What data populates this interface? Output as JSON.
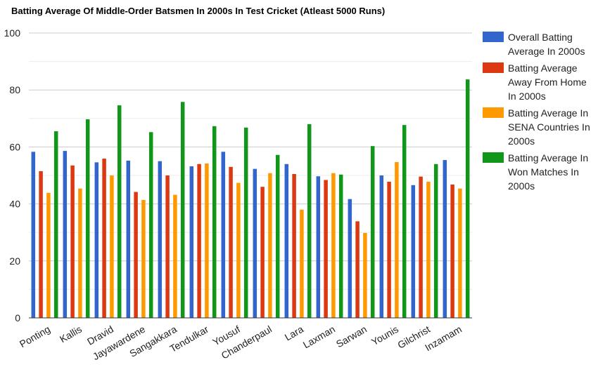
{
  "chart_data": {
    "type": "bar",
    "title": "Batting Average Of Middle-Order Batsmen In 2000s In Test Cricket (Atleast 5000 Runs)",
    "xlabel": "",
    "ylabel": "",
    "ylim": [
      0,
      100
    ],
    "yticks": [
      "0",
      "20",
      "40",
      "60",
      "80",
      "100"
    ],
    "grid": true,
    "legend_position": "right",
    "categories": [
      "Ponting",
      "Kallis",
      "Dravid",
      "Jayawardene",
      "Sangakkara",
      "Tendulkar",
      "Yousuf",
      "Chanderpaul",
      "Lara",
      "Laxman",
      "Sarwan",
      "Younis",
      "Gilchrist",
      "Inzamam"
    ],
    "series": [
      {
        "name": "Overall Batting Average In 2000s",
        "legend_lines": [
          "Overall Batting",
          "Average In 2000s"
        ],
        "color": "#3366cc",
        "values": [
          58.3,
          58.6,
          54.6,
          55.2,
          55.0,
          53.2,
          58.3,
          52.3,
          54.0,
          49.7,
          41.7,
          50.0,
          46.6,
          55.4
        ]
      },
      {
        "name": "Batting Average Away From Home In 2000s",
        "legend_lines": [
          "Batting Average",
          "Away From Home",
          "In 2000s"
        ],
        "color": "#dc3912",
        "values": [
          51.5,
          53.5,
          55.9,
          44.2,
          50.0,
          54.0,
          53.0,
          46.0,
          50.5,
          48.4,
          33.9,
          47.8,
          49.6,
          46.8
        ]
      },
      {
        "name": "Batting Average In SENA Countries In 2000s",
        "legend_lines": [
          "Batting Average In",
          "SENA Countries In",
          "2000s"
        ],
        "color": "#ff9900",
        "values": [
          43.9,
          45.4,
          50.0,
          41.4,
          43.2,
          54.2,
          47.4,
          50.8,
          38.0,
          50.8,
          29.8,
          54.7,
          47.8,
          45.4
        ]
      },
      {
        "name": "Batting Average In Won Matches In 2000s",
        "legend_lines": [
          "Batting Average In",
          "Won Matches In",
          "2000s"
        ],
        "color": "#109618",
        "values": [
          65.5,
          69.7,
          74.6,
          65.2,
          75.8,
          67.3,
          66.8,
          57.2,
          68.0,
          50.3,
          60.3,
          67.7,
          54.0,
          83.7
        ]
      }
    ]
  }
}
